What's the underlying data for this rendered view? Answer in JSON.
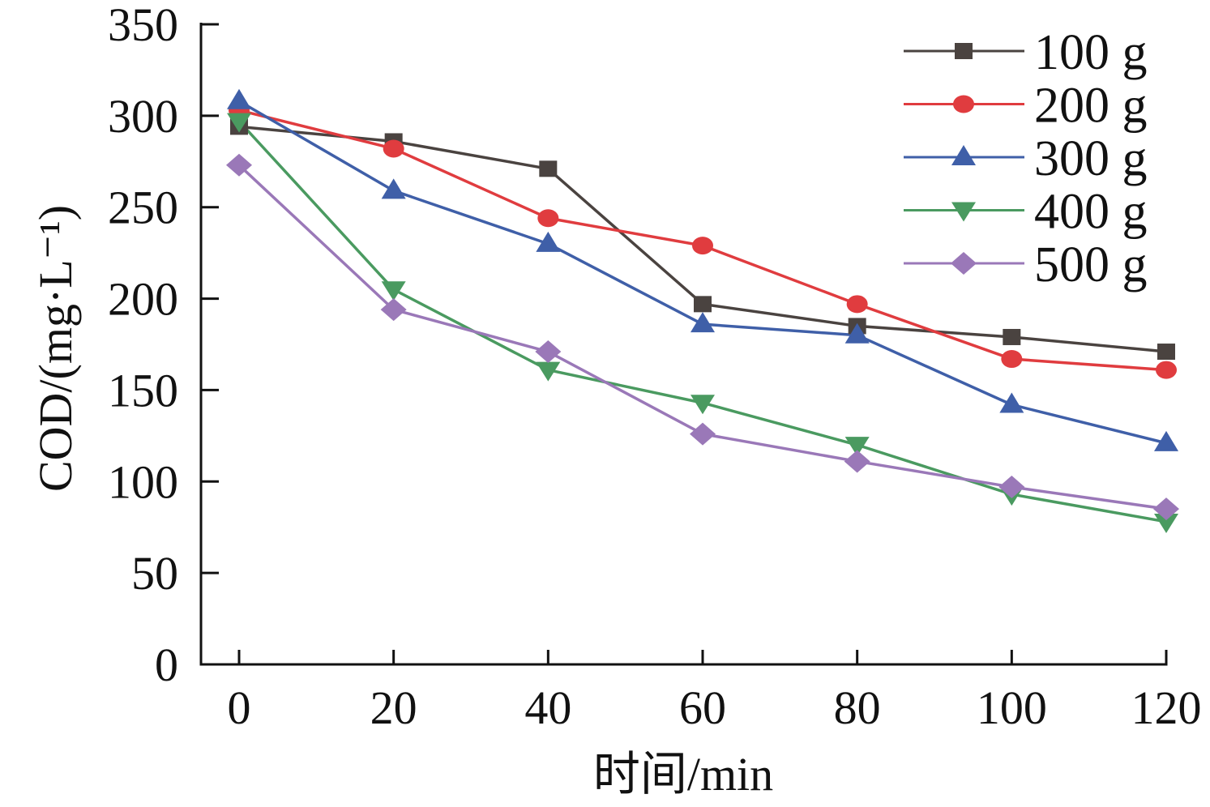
{
  "chart_data": {
    "type": "line",
    "title": "",
    "xlabel": "时间/min",
    "ylabel": "COD/(mg·L⁻¹)",
    "x": [
      0,
      20,
      40,
      60,
      80,
      100,
      120
    ],
    "xticks": [
      0,
      20,
      40,
      60,
      80,
      100,
      120
    ],
    "yticks": [
      0,
      50,
      100,
      150,
      200,
      250,
      300,
      350
    ],
    "xlim": [
      -8,
      122
    ],
    "ylim": [
      0,
      350
    ],
    "grid": false,
    "legend_position": "top-right",
    "series": [
      {
        "name": "100 g",
        "marker": "square",
        "color": "#4a4340",
        "values": [
          294,
          286,
          271,
          197,
          185,
          179,
          171
        ]
      },
      {
        "name": "200 g",
        "marker": "circle",
        "color": "#e03c3f",
        "values": [
          303,
          282,
          244,
          229,
          197,
          167,
          161
        ]
      },
      {
        "name": "300 g",
        "marker": "triangle-up",
        "color": "#3f5fa8",
        "values": [
          308,
          259,
          230,
          186,
          180,
          142,
          121
        ]
      },
      {
        "name": "400 g",
        "marker": "triangle-down",
        "color": "#4a9a60",
        "values": [
          297,
          205,
          161,
          143,
          120,
          93,
          78
        ]
      },
      {
        "name": "500 g",
        "marker": "diamond",
        "color": "#9a78b8",
        "values": [
          273,
          194,
          171,
          126,
          111,
          97,
          85
        ]
      }
    ]
  }
}
